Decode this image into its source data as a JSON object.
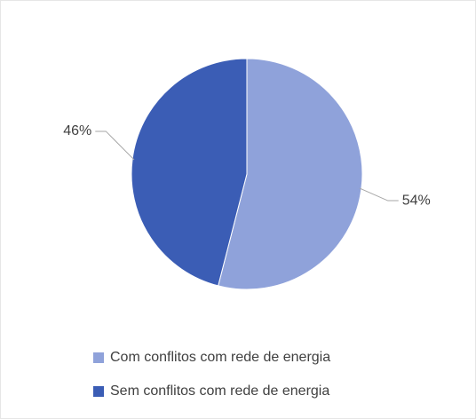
{
  "chart_data": {
    "type": "pie",
    "categories": [
      "Com conflitos com rede de energia",
      "Sem conflitos com rede de energia"
    ],
    "values": [
      54,
      46
    ],
    "value_labels": [
      "54%",
      "46%"
    ],
    "colors": [
      "#8fa2da",
      "#3b5db5"
    ],
    "legend": "bottom"
  }
}
